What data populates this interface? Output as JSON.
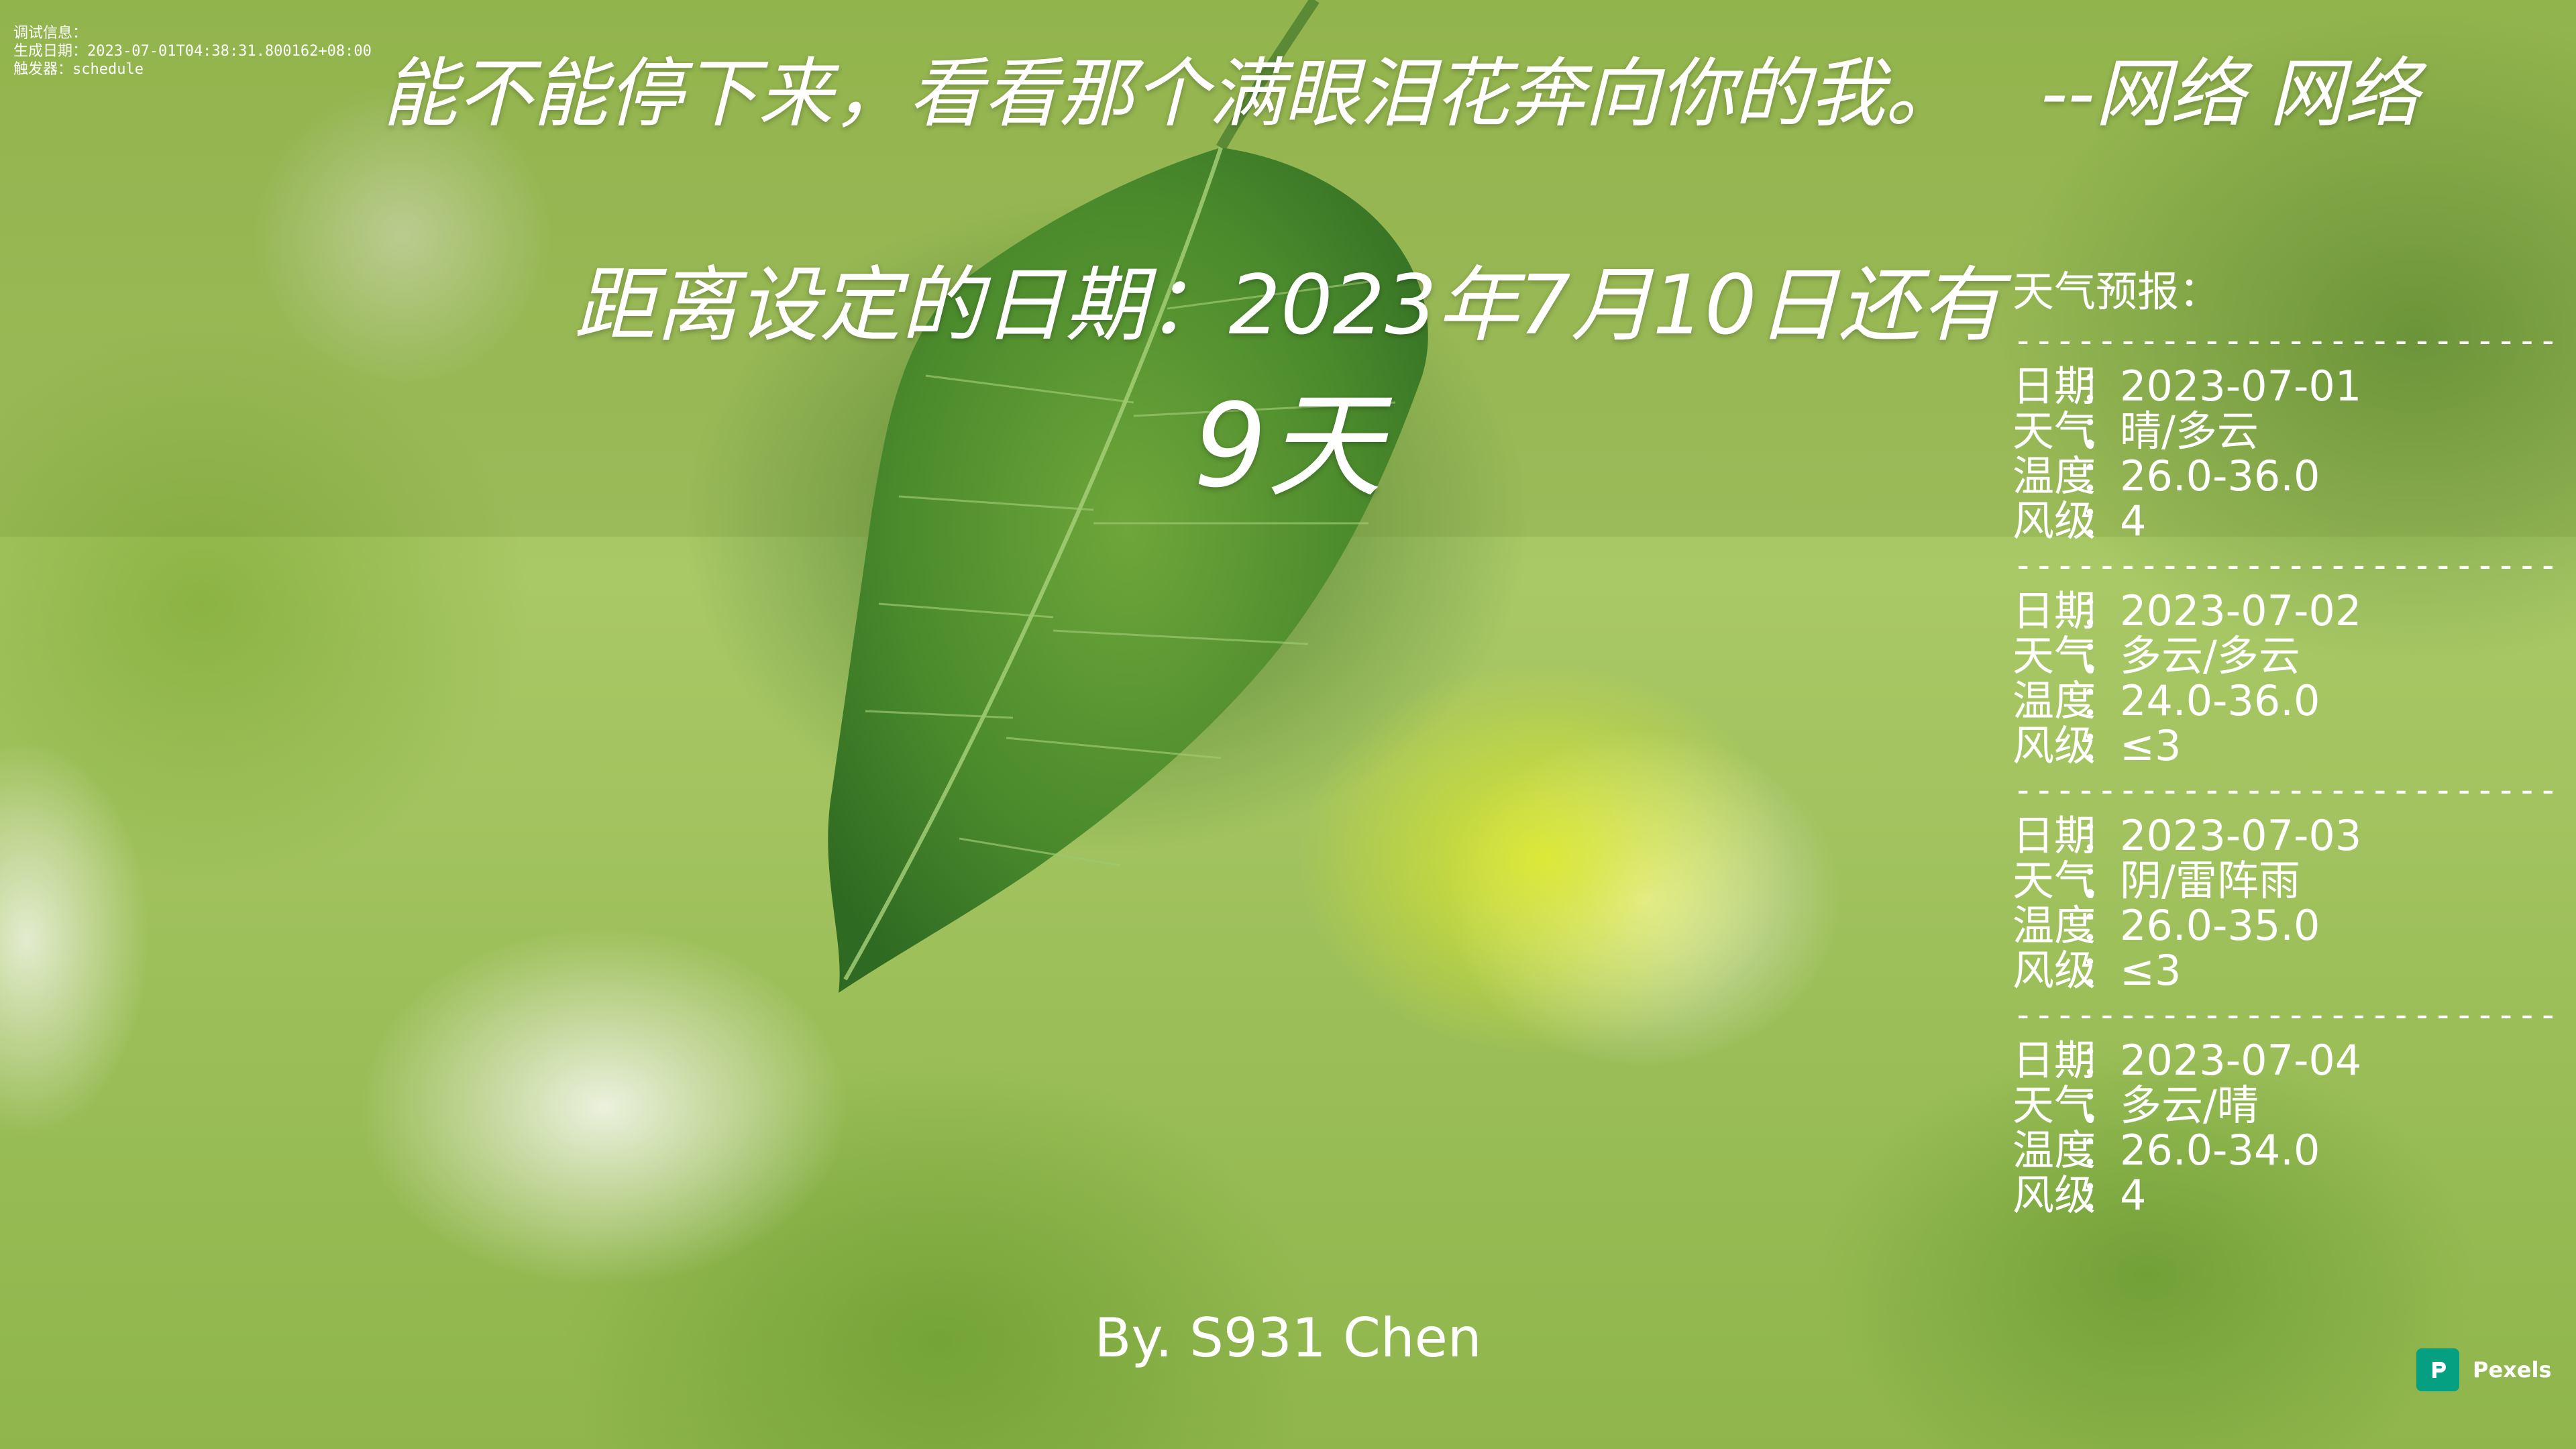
{
  "debug": {
    "lines": [
      "调试信息：",
      "生成日期：2023-07-01T04:38:31.800162+08:00",
      "触发器：schedule"
    ]
  },
  "quote": {
    "text": "能不能停下来，看看那个满眼泪花奔向你的我。",
    "author": "--网络 网络"
  },
  "countdown": {
    "line": "距离设定的日期：2023年7月10日还有",
    "days": "9天"
  },
  "weather": {
    "title": "天气预报：",
    "divider": "--------------------------",
    "labels": {
      "date": "日期",
      "weather": "天气",
      "temp": "温度",
      "wind": "风级",
      "sep": "："
    },
    "days": [
      {
        "date": "2023-07-01",
        "weather": "晴/多云",
        "temp": "26.0-36.0",
        "wind": "4"
      },
      {
        "date": "2023-07-02",
        "weather": "多云/多云",
        "temp": "24.0-36.0",
        "wind": "≤3"
      },
      {
        "date": "2023-07-03",
        "weather": "阴/雷阵雨",
        "temp": "26.0-35.0",
        "wind": "≤3"
      },
      {
        "date": "2023-07-04",
        "weather": "多云/晴",
        "temp": "26.0-34.0",
        "wind": "4"
      }
    ]
  },
  "byline": "By. S931 Chen",
  "credit": {
    "label": "Pexels",
    "brand_color": "#05a081"
  }
}
